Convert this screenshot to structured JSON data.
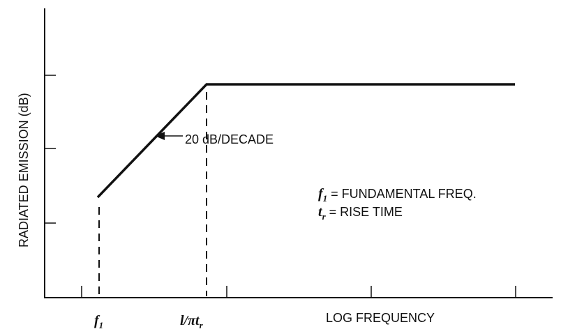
{
  "chart_data": {
    "type": "line",
    "title": "",
    "ylabel": "RADIATED EMISSION (dB)",
    "xlabel": "LOG FREQUENCY",
    "x_scale": "log",
    "grid": false,
    "x_tick_labels": [
      {
        "main": "f",
        "sub": "1"
      },
      {
        "main": "l/πt",
        "sub": "r"
      }
    ],
    "series": [
      {
        "points": [
          {
            "x": "f1",
            "y": 0
          },
          {
            "x": "1/πtr",
            "y": 20
          },
          {
            "x": "end",
            "y": 20
          }
        ]
      }
    ],
    "annotations": {
      "slope": "20 dB/DECADE",
      "legend_lines": [
        {
          "sym": "f",
          "sub": "1",
          "text": "= FUNDAMENTAL FREQ."
        },
        {
          "sym": "t",
          "sub": "r",
          "text": "= RISE TIME"
        }
      ]
    }
  }
}
